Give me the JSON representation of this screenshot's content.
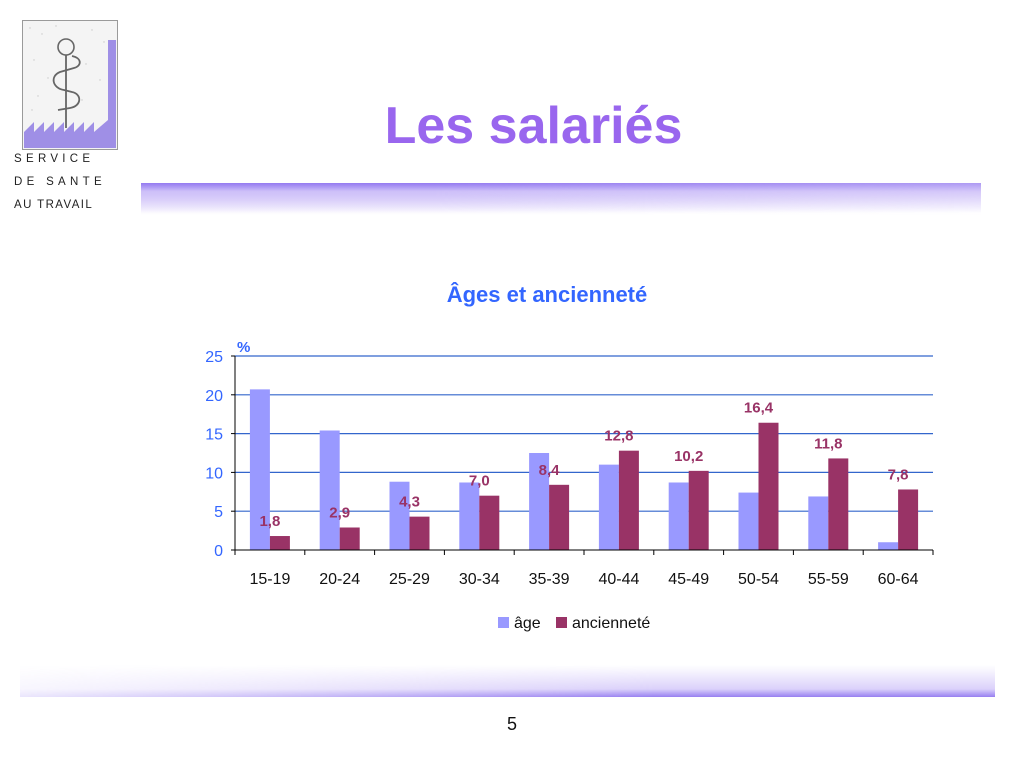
{
  "logo": {
    "line1": "SERVICE",
    "line2": "DE SANTE",
    "line3": "AU TRAVAIL"
  },
  "slide": {
    "title": "Les salariés",
    "page_number": "5"
  },
  "colors": {
    "title": "#9966ee",
    "chart_title": "#3366ff",
    "age": "#9999ff",
    "anciennete": "#993366",
    "gridline": "#3366cc",
    "tick_label": "#3366ff"
  },
  "chart_data": {
    "type": "bar",
    "title": "Âges et ancienneté",
    "ylabel": "%",
    "xlabel": "",
    "ylim": [
      0,
      25
    ],
    "yticks": [
      0,
      5,
      10,
      15,
      20,
      25
    ],
    "grid": true,
    "legend_position": "bottom",
    "categories": [
      "15-19",
      "20-24",
      "25-29",
      "30-34",
      "35-39",
      "40-44",
      "45-49",
      "50-54",
      "55-59",
      "60-64"
    ],
    "series": [
      {
        "name": "âge",
        "values": [
          20.7,
          15.4,
          8.8,
          8.7,
          12.5,
          11.0,
          8.7,
          7.4,
          6.9,
          1.0
        ],
        "labeled": false
      },
      {
        "name": "ancienneté",
        "values": [
          1.8,
          2.9,
          4.3,
          7.0,
          8.4,
          12.8,
          10.2,
          16.4,
          11.8,
          7.8
        ],
        "labeled": true,
        "data_labels": [
          "1,8",
          "2,9",
          "4,3",
          "7,0",
          "8,4",
          "12,8",
          "10,2",
          "16,4",
          "11,8",
          "7,8"
        ]
      }
    ]
  }
}
